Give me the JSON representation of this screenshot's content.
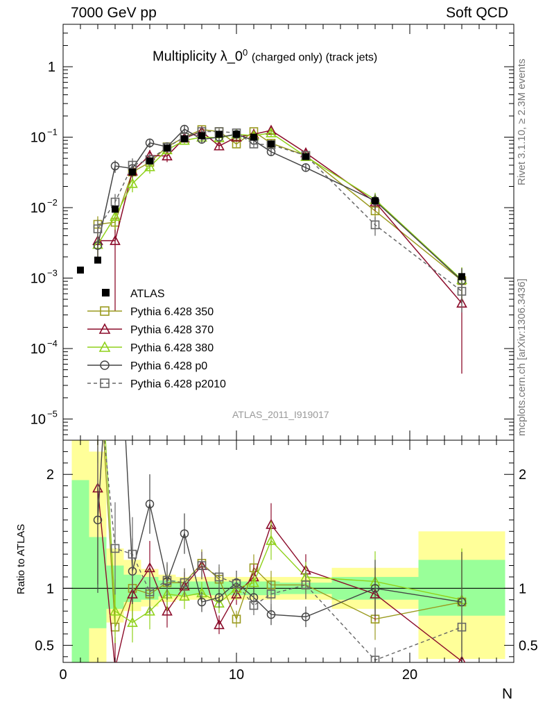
{
  "header": {
    "left": "7000 GeV pp",
    "right": "Soft QCD",
    "title_main": "Multiplicity λ_0",
    "title_sup": "0",
    "title_rest": "(charged only) (track jets)",
    "side_top": "Rivet 3.1.10, ≥ 2.3M events",
    "side_bottom": "mcplots.cern.ch [arXiv:1306.3436]",
    "watermark": "ATLAS_2011_I919017"
  },
  "colors": {
    "atlas": "#000000",
    "p350": "#9a9a1e",
    "p370": "#8b0b2a",
    "p380": "#8fd11a",
    "p0": "#444444",
    "p2010": "#666666",
    "band_green": "#99ff99",
    "band_yellow": "#ffff99"
  },
  "legend": [
    {
      "key": "atlas",
      "label": "ATLAS"
    },
    {
      "key": "p350",
      "label": "Pythia 6.428 350"
    },
    {
      "key": "p370",
      "label": "Pythia 6.428 370"
    },
    {
      "key": "p380",
      "label": "Pythia 6.428 380"
    },
    {
      "key": "p0",
      "label": "Pythia 6.428 p0"
    },
    {
      "key": "p2010",
      "label": "Pythia 6.428 p2010"
    }
  ],
  "chart_data": {
    "type": "line",
    "xlabel": "N",
    "ratio_ylabel": "Ratio to ATLAS",
    "xlim": [
      0,
      26
    ],
    "ylim_main": [
      5e-06,
      4
    ],
    "ylog": true,
    "ylim_ratio": [
      0.35,
      2.3
    ],
    "x_ticks": [
      0,
      10,
      20
    ],
    "y_ticks_main": [
      {
        "v": 1e-05,
        "m": "10",
        "e": "−5"
      },
      {
        "v": 0.0001,
        "m": "10",
        "e": "−4"
      },
      {
        "v": 0.001,
        "m": "10",
        "e": "−3"
      },
      {
        "v": 0.01,
        "m": "10",
        "e": "−2"
      },
      {
        "v": 0.1,
        "m": "10",
        "e": "−1"
      },
      {
        "v": 1,
        "m": "1",
        "e": ""
      }
    ],
    "y_ticks_ratio": [
      {
        "v": 0.5,
        "label": "0.5"
      },
      {
        "v": 1,
        "label": "1"
      },
      {
        "v": 2,
        "label": "2"
      }
    ],
    "atlas": {
      "name": "ATLAS",
      "points": [
        {
          "x": 1,
          "y": 0.0013
        },
        {
          "x": 2,
          "y": 0.0018
        },
        {
          "x": 3,
          "y": 0.0095
        },
        {
          "x": 4,
          "y": 0.032
        },
        {
          "x": 5,
          "y": 0.046
        },
        {
          "x": 6,
          "y": 0.07
        },
        {
          "x": 7,
          "y": 0.095
        },
        {
          "x": 8,
          "y": 0.105
        },
        {
          "x": 9,
          "y": 0.11
        },
        {
          "x": 10,
          "y": 0.11
        },
        {
          "x": 11,
          "y": 0.1
        },
        {
          "x": 12,
          "y": 0.08
        },
        {
          "x": 14,
          "y": 0.053
        },
        {
          "x": 18,
          "y": 0.0125
        },
        {
          "x": 23,
          "y": 0.00105
        }
      ]
    },
    "bands": [
      {
        "x0": 0.5,
        "x1": 1.5,
        "g": [
          0.35,
          1.95
        ],
        "y": [
          0.35,
          2.3
        ]
      },
      {
        "x0": 1.5,
        "x1": 2.5,
        "g": [
          0.65,
          1.45
        ],
        "y": [
          0.35,
          2.2
        ]
      },
      {
        "x0": 2.5,
        "x1": 3.5,
        "g": [
          0.82,
          1.2
        ],
        "y": [
          0.7,
          1.35
        ]
      },
      {
        "x0": 3.5,
        "x1": 4.5,
        "g": [
          0.88,
          1.12
        ],
        "y": [
          0.8,
          1.25
        ]
      },
      {
        "x0": 4.5,
        "x1": 5.5,
        "g": [
          0.9,
          1.1
        ],
        "y": [
          0.84,
          1.17
        ]
      },
      {
        "x0": 5.5,
        "x1": 6.5,
        "g": [
          0.93,
          1.07
        ],
        "y": [
          0.88,
          1.12
        ]
      },
      {
        "x0": 6.5,
        "x1": 7.5,
        "g": [
          0.94,
          1.06
        ],
        "y": [
          0.9,
          1.1
        ]
      },
      {
        "x0": 7.5,
        "x1": 8.5,
        "g": [
          0.94,
          1.06
        ],
        "y": [
          0.9,
          1.1
        ]
      },
      {
        "x0": 8.5,
        "x1": 9.5,
        "g": [
          0.94,
          1.06
        ],
        "y": [
          0.9,
          1.1
        ]
      },
      {
        "x0": 9.5,
        "x1": 10.5,
        "g": [
          0.94,
          1.06
        ],
        "y": [
          0.9,
          1.1
        ]
      },
      {
        "x0": 10.5,
        "x1": 11.5,
        "g": [
          0.94,
          1.06
        ],
        "y": [
          0.9,
          1.1
        ]
      },
      {
        "x0": 11.5,
        "x1": 12.5,
        "g": [
          0.94,
          1.06
        ],
        "y": [
          0.9,
          1.1
        ]
      },
      {
        "x0": 12.5,
        "x1": 15.5,
        "g": [
          0.95,
          1.05
        ],
        "y": [
          0.9,
          1.1
        ]
      },
      {
        "x0": 15.5,
        "x1": 20.5,
        "g": [
          0.9,
          1.1
        ],
        "y": [
          0.82,
          1.18
        ]
      },
      {
        "x0": 20.5,
        "x1": 25.5,
        "g": [
          0.76,
          1.25
        ],
        "y": [
          0.38,
          1.5
        ]
      }
    ],
    "series": [
      {
        "key": "p350",
        "name": "Pythia 6.428 350",
        "marker": "square",
        "dash": false,
        "x": [
          2,
          3,
          4,
          5,
          6,
          7,
          8,
          9,
          10,
          11,
          12,
          14,
          18,
          23
        ],
        "y": [
          0.0058,
          0.0062,
          0.032,
          0.044,
          0.073,
          0.1,
          0.128,
          0.12,
          0.08,
          0.12,
          0.082,
          0.055,
          0.009,
          0.00092
        ],
        "err": [
          0.3,
          0.3,
          0.25,
          0.2,
          0.15,
          0.12,
          0.1,
          0.1,
          0.1,
          0.1,
          0.12,
          0.12,
          0.25,
          0.5
        ],
        "ratio": [
          3.2,
          0.66,
          1.0,
          0.95,
          1.05,
          1.05,
          1.22,
          1.08,
          0.73,
          1.18,
          1.03,
          1.03,
          0.73,
          0.88
        ]
      },
      {
        "key": "p370",
        "name": "Pythia 6.428 370",
        "marker": "triangle",
        "dash": false,
        "x": [
          2,
          3,
          4,
          5,
          6,
          7,
          8,
          9,
          10,
          11,
          12,
          14,
          18,
          23
        ],
        "y": [
          0.0034,
          0.0034,
          0.033,
          0.055,
          0.054,
          0.097,
          0.12,
          0.075,
          0.1,
          0.11,
          0.125,
          0.06,
          0.012,
          0.00044
        ],
        "err": [
          0.45,
          0.9,
          0.25,
          0.2,
          0.18,
          0.12,
          0.1,
          0.12,
          0.1,
          0.1,
          0.12,
          0.12,
          0.25,
          0.9
        ],
        "ratio": [
          1.88,
          0.3,
          0.95,
          1.18,
          0.8,
          1.02,
          1.2,
          0.68,
          0.95,
          1.1,
          1.56,
          1.16,
          0.95,
          0.36
        ]
      },
      {
        "key": "p380",
        "name": "Pythia 6.428 380",
        "marker": "triangle",
        "dash": false,
        "x": [
          2,
          3,
          4,
          5,
          6,
          7,
          8,
          9,
          10,
          11,
          12,
          14,
          18,
          23
        ],
        "y": [
          0.003,
          0.0075,
          0.022,
          0.038,
          0.066,
          0.09,
          0.1,
          0.098,
          0.11,
          0.105,
          0.115,
          0.053,
          0.013,
          0.00095
        ],
        "err": [
          0.4,
          0.35,
          0.25,
          0.2,
          0.15,
          0.12,
          0.1,
          0.1,
          0.1,
          0.1,
          0.12,
          0.12,
          0.25,
          0.5
        ],
        "ratio": [
          3.5,
          0.8,
          0.7,
          0.8,
          0.95,
          0.93,
          0.96,
          0.87,
          1.0,
          1.05,
          1.42,
          1.1,
          1.06,
          0.9
        ]
      },
      {
        "key": "p0",
        "name": "Pythia 6.428 p0",
        "marker": "circle",
        "dash": false,
        "x": [
          2,
          3,
          4,
          5,
          6,
          7,
          8,
          9,
          10,
          11,
          12,
          14,
          18,
          23
        ],
        "y": [
          0.0029,
          0.039,
          0.036,
          0.083,
          0.073,
          0.13,
          0.093,
          0.1,
          0.11,
          0.09,
          0.062,
          0.037,
          0.0125,
          0.00092
        ],
        "err": [
          0.4,
          0.2,
          0.25,
          0.15,
          0.15,
          0.12,
          0.1,
          0.1,
          0.1,
          0.1,
          0.12,
          0.12,
          0.25,
          0.5
        ],
        "ratio": [
          1.6,
          4.1,
          1.15,
          1.74,
          1.06,
          1.48,
          0.88,
          0.92,
          1.05,
          0.92,
          0.77,
          0.75,
          1.0,
          0.88
        ]
      },
      {
        "key": "p2010",
        "name": "Pythia 6.428 p2010",
        "marker": "square",
        "dash": true,
        "x": [
          2,
          3,
          4,
          5,
          6,
          7,
          8,
          9,
          10,
          11,
          12,
          14,
          18,
          23
        ],
        "y": [
          0.005,
          0.012,
          0.04,
          0.048,
          0.072,
          0.1,
          0.12,
          0.12,
          0.115,
          0.08,
          0.078,
          0.055,
          0.0057,
          0.00065
        ],
        "err": [
          0.35,
          0.3,
          0.25,
          0.2,
          0.15,
          0.12,
          0.1,
          0.1,
          0.1,
          0.1,
          0.12,
          0.12,
          0.3,
          0.5
        ],
        "ratio": [
          2.9,
          1.35,
          1.3,
          0.97,
          1.07,
          1.05,
          1.2,
          1.1,
          1.04,
          0.85,
          0.95,
          1.03,
          0.37,
          0.66
        ]
      }
    ]
  }
}
